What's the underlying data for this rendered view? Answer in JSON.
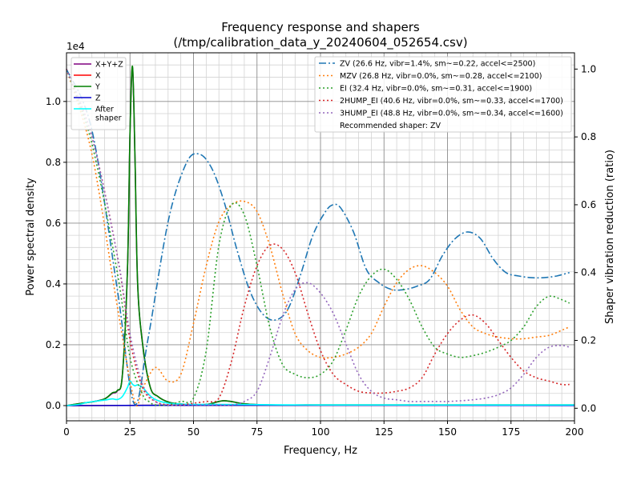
{
  "chart_data": {
    "type": "line",
    "title": "Frequency response and shapers",
    "subtitle": "(/tmp/calibration_data_y_20240604_052654.csv)",
    "xlabel": "Frequency, Hz",
    "ylabel": "Power spectral density",
    "y2label": "Shaper vibration reduction (ratio)",
    "y_offset_label": "1e4",
    "xlim": [
      0,
      200
    ],
    "ylim": [
      -0.05,
      1.16
    ],
    "y2lim": [
      -0.037,
      1.048
    ],
    "x_ticks": [
      0,
      25,
      50,
      75,
      100,
      125,
      150,
      175,
      200
    ],
    "x_tick_labels": [
      "0",
      "25",
      "50",
      "75",
      "100",
      "125",
      "150",
      "175",
      "200"
    ],
    "y_ticks": [
      0.0,
      0.2,
      0.4,
      0.6,
      0.8,
      1.0
    ],
    "y_tick_labels": [
      "0.0",
      "0.2",
      "0.4",
      "0.6",
      "0.8",
      "1.0"
    ],
    "y2_ticks": [
      0.0,
      0.2,
      0.4,
      0.6,
      0.8,
      1.0
    ],
    "y2_tick_labels": [
      "0.0",
      "0.2",
      "0.4",
      "0.6",
      "0.8",
      "1.0"
    ],
    "grid": true,
    "psd_series": [
      {
        "name": "X+Y+Z",
        "color": "#800080",
        "x": [
          0,
          6,
          10,
          15,
          18,
          20,
          22,
          24,
          25,
          26,
          27,
          28,
          30,
          33,
          36,
          40,
          45,
          55,
          62,
          70,
          80,
          100,
          150,
          200
        ],
        "y": [
          0,
          0.008,
          0.012,
          0.022,
          0.04,
          0.048,
          0.1,
          0.45,
          0.9,
          1.11,
          0.8,
          0.4,
          0.2,
          0.06,
          0.03,
          0.012,
          0.005,
          0.004,
          0.016,
          0.006,
          0.002,
          0.002,
          0.002,
          0.002
        ]
      },
      {
        "name": "X",
        "color": "#ff0000",
        "x": [
          0,
          50,
          100,
          150,
          200
        ],
        "y": [
          0,
          0.001,
          0.001,
          0.001,
          0.001
        ]
      },
      {
        "name": "Y",
        "color": "#008000",
        "x": [
          0,
          6,
          10,
          15,
          18,
          20,
          22,
          24,
          25,
          26,
          27,
          28,
          30,
          33,
          36,
          40,
          45,
          55,
          62,
          70,
          80,
          100,
          150,
          200
        ],
        "y": [
          0,
          0.008,
          0.012,
          0.022,
          0.042,
          0.05,
          0.1,
          0.45,
          0.9,
          1.115,
          0.8,
          0.4,
          0.2,
          0.06,
          0.03,
          0.012,
          0.005,
          0.004,
          0.016,
          0.006,
          0.002,
          0.002,
          0.002,
          0.002
        ]
      },
      {
        "name": "Z",
        "color": "#0000cd",
        "x": [
          0,
          50,
          100,
          150,
          200
        ],
        "y": [
          0,
          0.001,
          0.001,
          0.001,
          0.0005
        ]
      },
      {
        "name": "After\nshaper",
        "color": "#00ffff",
        "x": [
          0,
          5,
          8,
          12,
          15,
          18,
          20,
          22,
          24,
          25,
          26,
          27,
          28,
          30,
          32,
          35,
          40,
          50,
          60,
          80,
          100,
          150,
          200
        ],
        "y": [
          0,
          0.004,
          0.01,
          0.015,
          0.018,
          0.022,
          0.02,
          0.03,
          0.06,
          0.08,
          0.07,
          0.065,
          0.068,
          0.06,
          0.04,
          0.02,
          0.008,
          0.004,
          0.004,
          0.003,
          0.002,
          0.002,
          0.002
        ]
      }
    ],
    "shaper_series": [
      {
        "name": "ZV (26.6 Hz, vibr=1.4%, sm~=0.22, accel<=2500)",
        "color": "#1f77b4",
        "style": "dashdot",
        "x": [
          0,
          10,
          20,
          26.6,
          32,
          40,
          47,
          52,
          57,
          62,
          67,
          72,
          77,
          82,
          87,
          92,
          97,
          102,
          105,
          108,
          113,
          118,
          123,
          128,
          133,
          138,
          143,
          148,
          153,
          158,
          163,
          168,
          173,
          178,
          183,
          188,
          193,
          198
        ],
        "y": [
          1.0,
          0.82,
          0.35,
          0.014,
          0.2,
          0.55,
          0.72,
          0.75,
          0.71,
          0.61,
          0.47,
          0.35,
          0.28,
          0.26,
          0.29,
          0.39,
          0.51,
          0.58,
          0.6,
          0.59,
          0.52,
          0.41,
          0.37,
          0.35,
          0.35,
          0.36,
          0.38,
          0.45,
          0.5,
          0.52,
          0.5,
          0.44,
          0.4,
          0.39,
          0.385,
          0.385,
          0.39,
          0.4
        ]
      },
      {
        "name": "MZV (26.8 Hz, vibr=0.0%, sm~=0.28, accel<=2100)",
        "color": "#ff7f0e",
        "style": "dotted",
        "x": [
          0,
          10,
          20,
          26.8,
          30,
          35,
          40,
          45,
          50,
          55,
          60,
          65,
          70,
          75,
          80,
          85,
          90,
          95,
          100,
          105,
          110,
          115,
          120,
          125,
          130,
          135,
          140,
          145,
          150,
          155,
          160,
          165,
          170,
          175,
          180,
          185,
          190,
          195,
          198
        ],
        "y": [
          1.0,
          0.75,
          0.3,
          0.02,
          0.06,
          0.12,
          0.08,
          0.1,
          0.25,
          0.42,
          0.55,
          0.6,
          0.61,
          0.58,
          0.48,
          0.34,
          0.22,
          0.17,
          0.15,
          0.15,
          0.16,
          0.18,
          0.22,
          0.3,
          0.37,
          0.41,
          0.42,
          0.4,
          0.36,
          0.29,
          0.24,
          0.22,
          0.21,
          0.205,
          0.205,
          0.21,
          0.215,
          0.23,
          0.24
        ]
      },
      {
        "name": "EI (32.4 Hz, vibr=0.0%, sm~=0.31, accel<=1900)",
        "color": "#2ca02c",
        "style": "dotted",
        "x": [
          0,
          10,
          20,
          25,
          30,
          32.4,
          35,
          40,
          45,
          50,
          55,
          60,
          65,
          70,
          75,
          80,
          85,
          90,
          95,
          100,
          105,
          110,
          115,
          120,
          125,
          130,
          135,
          140,
          145,
          150,
          155,
          160,
          165,
          170,
          175,
          180,
          185,
          190,
          195,
          198
        ],
        "y": [
          1.0,
          0.78,
          0.4,
          0.15,
          0.04,
          0.02,
          0.01,
          0.01,
          0.02,
          0.03,
          0.17,
          0.48,
          0.6,
          0.57,
          0.42,
          0.24,
          0.13,
          0.1,
          0.09,
          0.1,
          0.14,
          0.23,
          0.33,
          0.39,
          0.41,
          0.38,
          0.32,
          0.24,
          0.18,
          0.16,
          0.15,
          0.155,
          0.165,
          0.18,
          0.2,
          0.24,
          0.3,
          0.33,
          0.32,
          0.31
        ]
      },
      {
        "name": "2HUMP_EI (40.6 Hz, vibr=0.0%, sm~=0.33, accel<=1700)",
        "color": "#d62728",
        "style": "dotted",
        "x": [
          0,
          10,
          20,
          25,
          30,
          35,
          40.6,
          45,
          50,
          55,
          60,
          65,
          70,
          75,
          80,
          85,
          90,
          95,
          100,
          105,
          110,
          115,
          120,
          125,
          130,
          135,
          140,
          145,
          150,
          155,
          160,
          165,
          170,
          175,
          180,
          185,
          190,
          195,
          198
        ],
        "y": [
          1.0,
          0.8,
          0.45,
          0.2,
          0.06,
          0.02,
          0.01,
          0.01,
          0.015,
          0.02,
          0.03,
          0.14,
          0.3,
          0.42,
          0.48,
          0.47,
          0.4,
          0.28,
          0.17,
          0.1,
          0.07,
          0.05,
          0.045,
          0.045,
          0.05,
          0.06,
          0.09,
          0.16,
          0.22,
          0.26,
          0.275,
          0.25,
          0.2,
          0.15,
          0.11,
          0.09,
          0.08,
          0.07,
          0.07
        ]
      },
      {
        "name": "3HUMP_EI (48.8 Hz, vibr=0.0%, sm~=0.34, accel<=1600)",
        "color": "#9467bd",
        "style": "dotted",
        "x": [
          0,
          10,
          20,
          25,
          30,
          35,
          40,
          45,
          50,
          55,
          60,
          65,
          70,
          75,
          80,
          85,
          90,
          95,
          100,
          105,
          110,
          115,
          120,
          125,
          130,
          135,
          140,
          145,
          150,
          155,
          160,
          165,
          170,
          175,
          180,
          185,
          190,
          195,
          198
        ],
        "y": [
          1.0,
          0.8,
          0.45,
          0.22,
          0.07,
          0.02,
          0.01,
          0.01,
          0.01,
          0.01,
          0.01,
          0.01,
          0.02,
          0.05,
          0.15,
          0.27,
          0.35,
          0.37,
          0.34,
          0.28,
          0.19,
          0.1,
          0.05,
          0.03,
          0.025,
          0.02,
          0.02,
          0.02,
          0.02,
          0.022,
          0.025,
          0.03,
          0.04,
          0.06,
          0.1,
          0.15,
          0.18,
          0.185,
          0.18
        ]
      }
    ],
    "psd_legend_position": "upper-left",
    "shaper_legend_position": "upper-right",
    "recommended_text": "Recommended shaper: ZV"
  }
}
